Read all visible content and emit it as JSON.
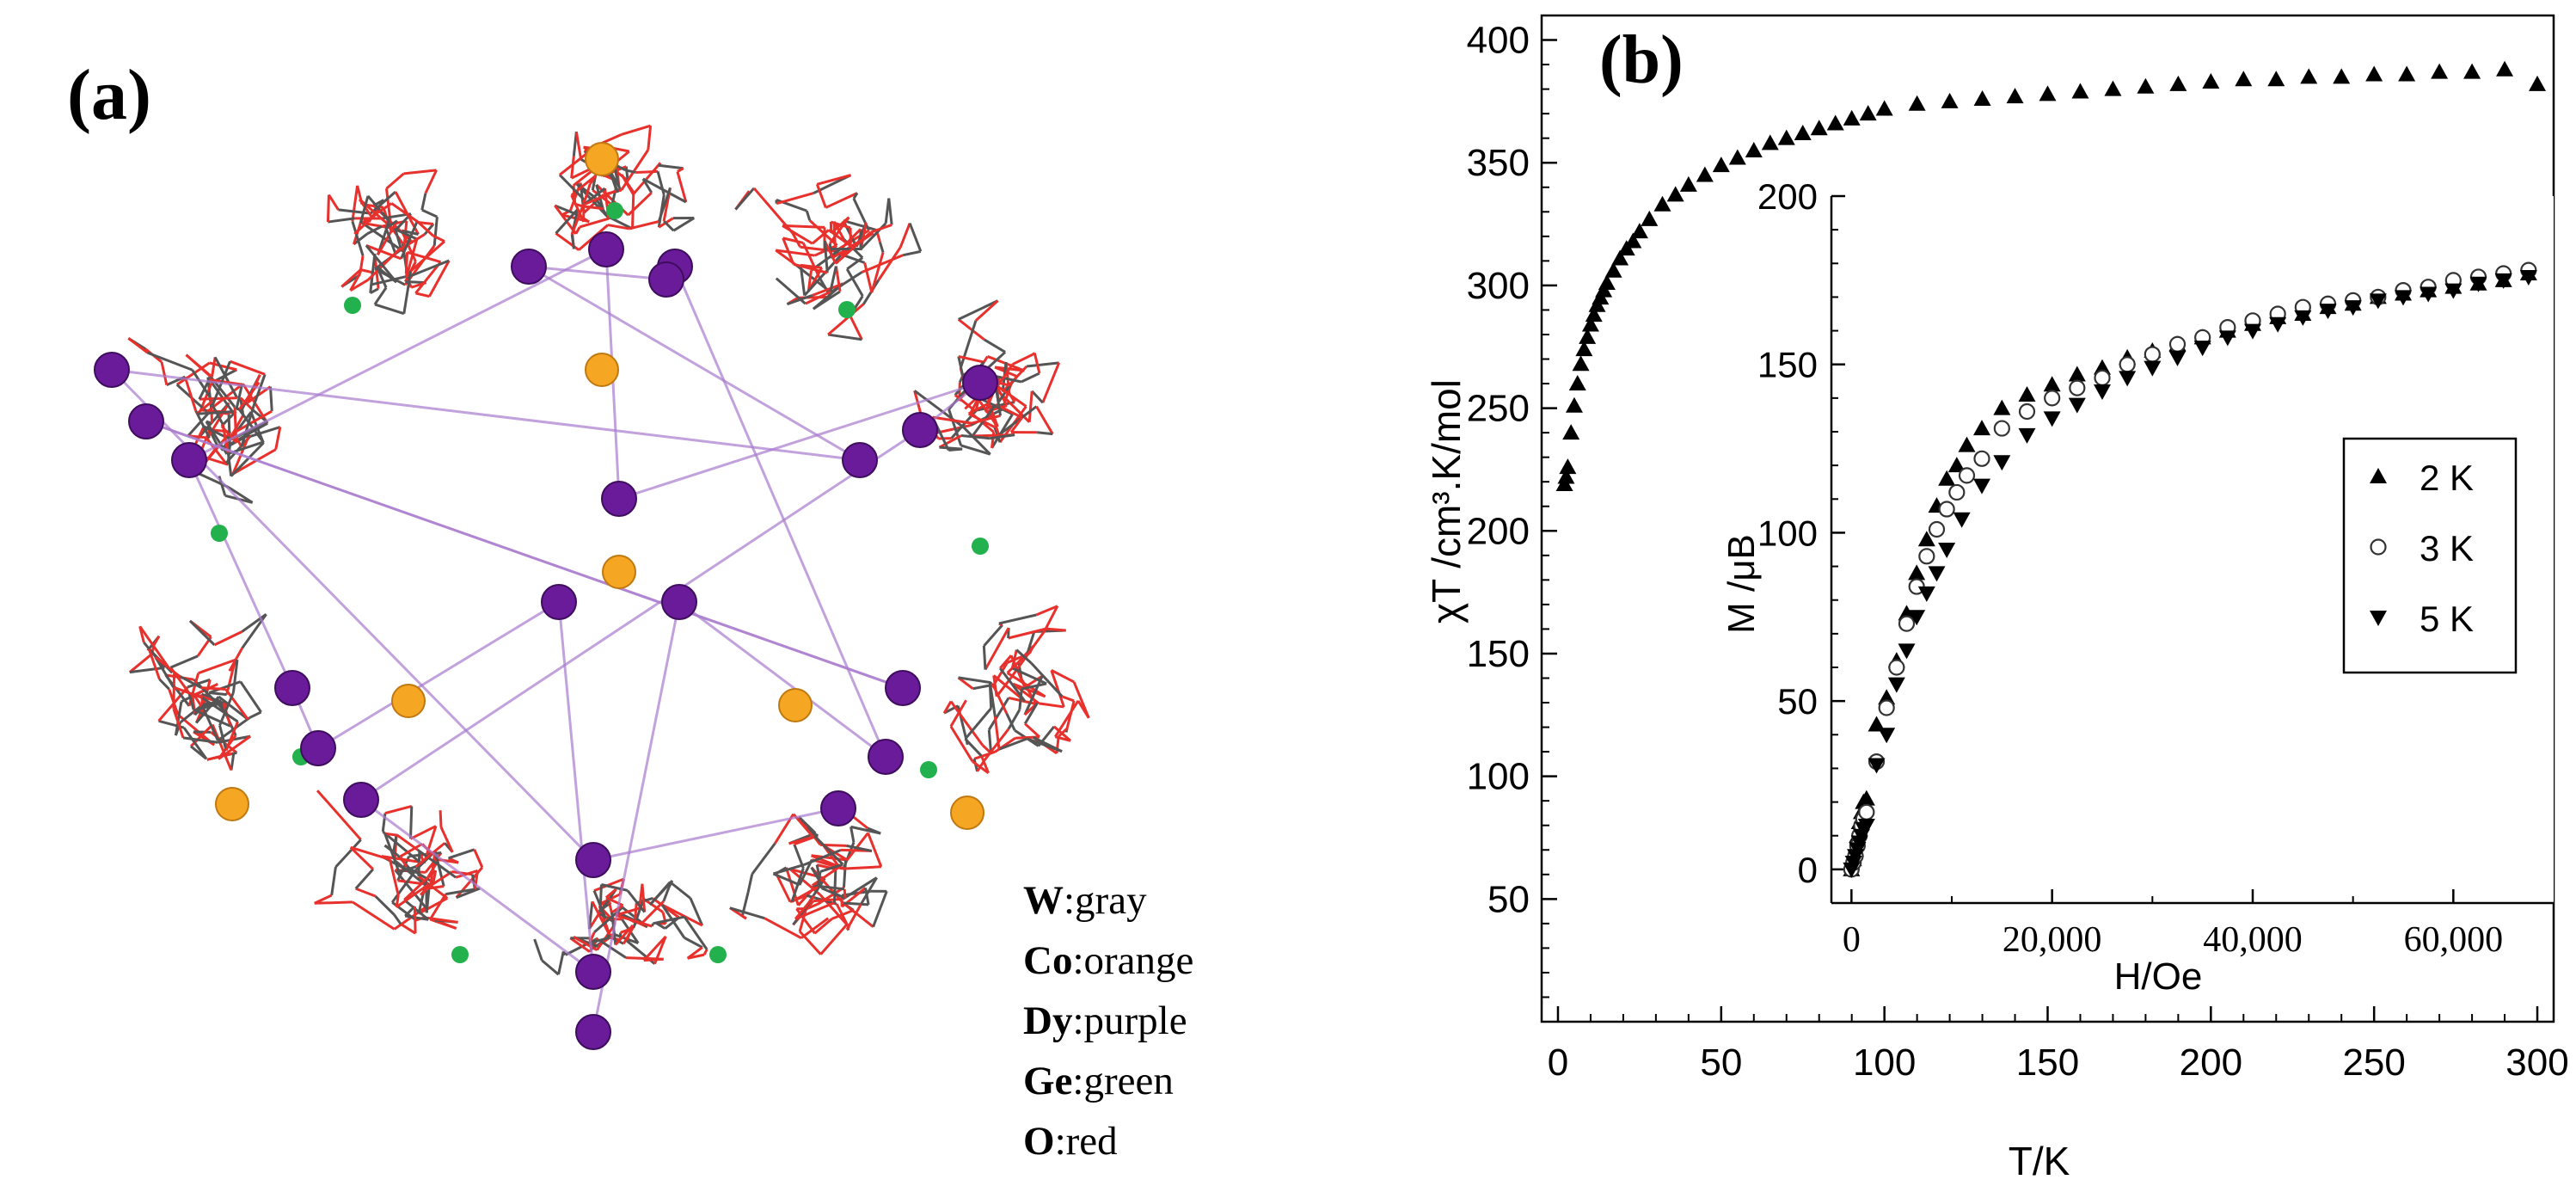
{
  "panel_a": {
    "label": "(a)",
    "legend": [
      {
        "symbol": "W",
        "text": ":gray",
        "color": "#808080"
      },
      {
        "symbol": "Co",
        "text": ":orange",
        "color": "#f5a623"
      },
      {
        "symbol": "Dy",
        "text": ":purple",
        "color": "#6a1b9a"
      },
      {
        "symbol": "Ge",
        "text": ":green",
        "color": "#22b14c"
      },
      {
        "symbol": "O",
        "text": ":red",
        "color": "#e8302c"
      }
    ]
  },
  "chart_data": [
    {
      "type": "scatter",
      "panel_label": "(b)",
      "xlabel": "T/K",
      "ylabel": "χT /cm³.K/mol",
      "xlim": [
        -5,
        305
      ],
      "ylim": [
        0,
        410
      ],
      "xticks": [
        "0",
        "50",
        "100",
        "150",
        "200",
        "250",
        "300"
      ],
      "yticks": [
        "50",
        "100",
        "150",
        "200",
        "250",
        "300",
        "350",
        "400"
      ],
      "series": [
        {
          "marker": "triangle-up",
          "points": [
            [
              2,
              219
            ],
            [
              2.5,
              222
            ],
            [
              3,
              226
            ],
            [
              4,
              240
            ],
            [
              5,
              251
            ],
            [
              6,
              260
            ],
            [
              7,
              268
            ],
            [
              8,
              274
            ],
            [
              9,
              279
            ],
            [
              10,
              284
            ],
            [
              11,
              288
            ],
            [
              12,
              292
            ],
            [
              13,
              295
            ],
            [
              14,
              298
            ],
            [
              15,
              301
            ],
            [
              17,
              306
            ],
            [
              19,
              311
            ],
            [
              21,
              315
            ],
            [
              23,
              318
            ],
            [
              25,
              322
            ],
            [
              28,
              327
            ],
            [
              32,
              333
            ],
            [
              36,
              337
            ],
            [
              40,
              341
            ],
            [
              45,
              345
            ],
            [
              50,
              349
            ],
            [
              55,
              352
            ],
            [
              60,
              355
            ],
            [
              65,
              358
            ],
            [
              70,
              360
            ],
            [
              75,
              362
            ],
            [
              80,
              364
            ],
            [
              85,
              366
            ],
            [
              90,
              368
            ],
            [
              95,
              370
            ],
            [
              100,
              372
            ],
            [
              110,
              374
            ],
            [
              120,
              375
            ],
            [
              130,
              376
            ],
            [
              140,
              377
            ],
            [
              150,
              378
            ],
            [
              160,
              379
            ],
            [
              170,
              380
            ],
            [
              180,
              381
            ],
            [
              190,
              382
            ],
            [
              200,
              383
            ],
            [
              210,
              384
            ],
            [
              220,
              384
            ],
            [
              230,
              385
            ],
            [
              240,
              385
            ],
            [
              250,
              386
            ],
            [
              260,
              386
            ],
            [
              270,
              387
            ],
            [
              280,
              387
            ],
            [
              290,
              388
            ],
            [
              300,
              382
            ]
          ]
        }
      ]
    },
    {
      "type": "scatter",
      "inset": true,
      "xlabel": "H/Oe",
      "ylabel": "M /μB",
      "xlim": [
        -2000,
        70000
      ],
      "ylim": [
        -10,
        200
      ],
      "xticks": [
        {
          "v": 0,
          "t": "0"
        },
        {
          "v": 20000,
          "t": "20,000"
        },
        {
          "v": 40000,
          "t": "40,000"
        },
        {
          "v": 60000,
          "t": "60,000"
        }
      ],
      "yticks": [
        "0",
        "50",
        "100",
        "150",
        "200"
      ],
      "legend": "right",
      "series": [
        {
          "name": "2 K",
          "marker": "triangle-up",
          "points": [
            [
              0,
              0
            ],
            [
              200,
              3
            ],
            [
              400,
              6
            ],
            [
              600,
              10
            ],
            [
              800,
              14
            ],
            [
              1000,
              17
            ],
            [
              1200,
              20
            ],
            [
              1500,
              21
            ],
            [
              2500,
              43
            ],
            [
              3500,
              51
            ],
            [
              4500,
              62
            ],
            [
              5500,
              76
            ],
            [
              6500,
              88
            ],
            [
              7500,
              98
            ],
            [
              8500,
              108
            ],
            [
              9500,
              116
            ],
            [
              10500,
              120
            ],
            [
              11500,
              126
            ],
            [
              13000,
              131
            ],
            [
              15000,
              137
            ],
            [
              17500,
              141
            ],
            [
              20000,
              144
            ],
            [
              22500,
              147
            ],
            [
              25000,
              149
            ],
            [
              27500,
              152
            ],
            [
              30000,
              154
            ],
            [
              32500,
              156
            ],
            [
              35000,
              158
            ],
            [
              37500,
              160
            ],
            [
              40000,
              162
            ],
            [
              42500,
              164
            ],
            [
              45000,
              165
            ],
            [
              47500,
              167
            ],
            [
              50000,
              168
            ],
            [
              52500,
              170
            ],
            [
              55000,
              171
            ],
            [
              57500,
              172
            ],
            [
              60000,
              173
            ],
            [
              62500,
              174
            ],
            [
              65000,
              175
            ],
            [
              67500,
              177
            ]
          ]
        },
        {
          "name": "3 K",
          "marker": "circle-open",
          "points": [
            [
              0,
              0
            ],
            [
              200,
              2
            ],
            [
              400,
              4
            ],
            [
              600,
              7
            ],
            [
              800,
              10
            ],
            [
              1000,
              13
            ],
            [
              1200,
              15
            ],
            [
              1500,
              17
            ],
            [
              2500,
              32
            ],
            [
              3500,
              48
            ],
            [
              4500,
              60
            ],
            [
              5500,
              73
            ],
            [
              6500,
              84
            ],
            [
              7500,
              93
            ],
            [
              8500,
              101
            ],
            [
              9500,
              107
            ],
            [
              10500,
              112
            ],
            [
              11500,
              117
            ],
            [
              13000,
              122
            ],
            [
              15000,
              131
            ],
            [
              17500,
              136
            ],
            [
              20000,
              140
            ],
            [
              22500,
              143
            ],
            [
              25000,
              146
            ],
            [
              27500,
              150
            ],
            [
              30000,
              153
            ],
            [
              32500,
              156
            ],
            [
              35000,
              158
            ],
            [
              37500,
              161
            ],
            [
              40000,
              163
            ],
            [
              42500,
              165
            ],
            [
              45000,
              167
            ],
            [
              47500,
              168
            ],
            [
              50000,
              169
            ],
            [
              52500,
              170
            ],
            [
              55000,
              172
            ],
            [
              57500,
              173
            ],
            [
              60000,
              175
            ],
            [
              62500,
              176
            ],
            [
              65000,
              177
            ],
            [
              67500,
              178
            ]
          ]
        },
        {
          "name": "5 K",
          "marker": "triangle-down",
          "points": [
            [
              0,
              0
            ],
            [
              200,
              2
            ],
            [
              400,
              4
            ],
            [
              600,
              6
            ],
            [
              800,
              8
            ],
            [
              1000,
              10
            ],
            [
              1200,
              12
            ],
            [
              1500,
              13
            ],
            [
              2500,
              31
            ],
            [
              3500,
              40
            ],
            [
              4500,
              55
            ],
            [
              5500,
              65
            ],
            [
              6500,
              75
            ],
            [
              7500,
              82
            ],
            [
              8500,
              88
            ],
            [
              9500,
              95
            ],
            [
              11000,
              104
            ],
            [
              13000,
              114
            ],
            [
              15000,
              121
            ],
            [
              17500,
              129
            ],
            [
              20000,
              134
            ],
            [
              22500,
              138
            ],
            [
              25000,
              142
            ],
            [
              27500,
              146
            ],
            [
              30000,
              149
            ],
            [
              32500,
              152
            ],
            [
              35000,
              155
            ],
            [
              37500,
              158
            ],
            [
              40000,
              160
            ],
            [
              42500,
              162
            ],
            [
              45000,
              164
            ],
            [
              47500,
              166
            ],
            [
              50000,
              167
            ],
            [
              52500,
              169
            ],
            [
              55000,
              170
            ],
            [
              57500,
              171
            ],
            [
              60000,
              172
            ],
            [
              62500,
              174
            ],
            [
              65000,
              175
            ],
            [
              67500,
              176
            ]
          ]
        }
      ]
    }
  ]
}
